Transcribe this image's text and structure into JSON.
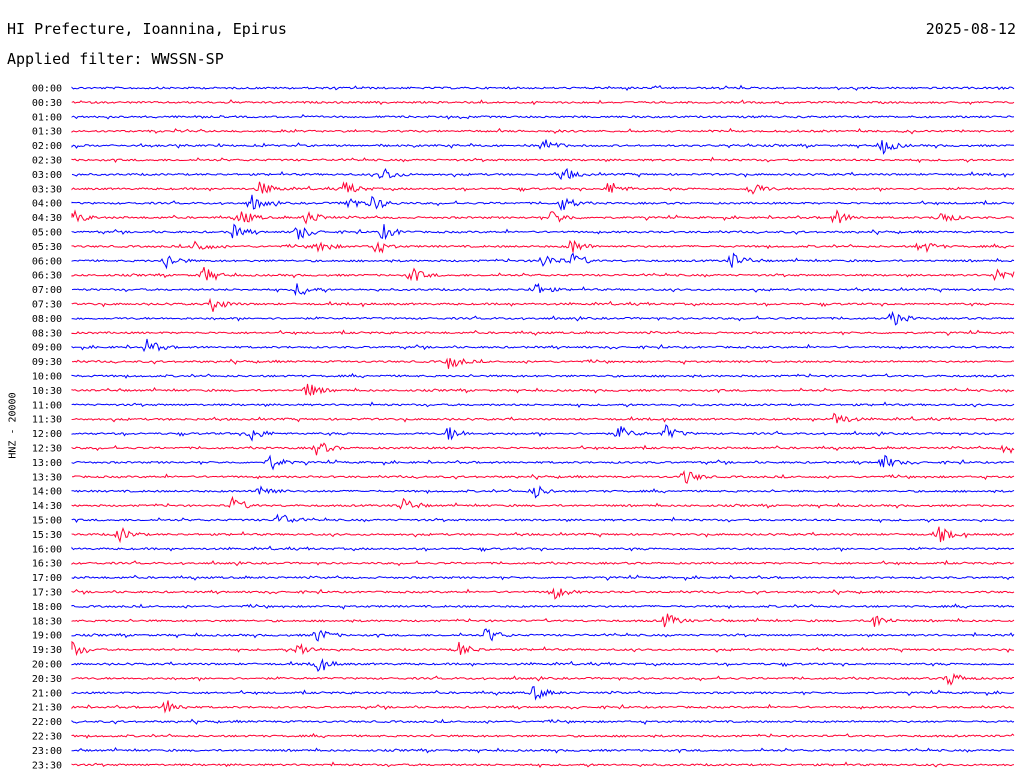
{
  "header": {
    "title": "HI Prefecture, Ioannina, Epirus",
    "date": "2025-08-12",
    "filter": "Applied filter: WWSSN-SP"
  },
  "chart_data": {
    "type": "line",
    "ylabel": "HNZ - 20000",
    "colors": [
      "#0000ff",
      "#ff0033"
    ],
    "traces": [
      {
        "label": "00:00",
        "events": []
      },
      {
        "label": "00:30",
        "events": []
      },
      {
        "label": "01:00",
        "events": []
      },
      {
        "label": "01:30",
        "events": []
      },
      {
        "label": "02:00",
        "events": [
          0.5,
          0.86
        ]
      },
      {
        "label": "02:30",
        "events": []
      },
      {
        "label": "03:00",
        "events": [
          0.33,
          0.52
        ]
      },
      {
        "label": "03:30",
        "events": [
          0.2,
          0.29,
          0.57,
          0.72
        ]
      },
      {
        "label": "04:00",
        "events": [
          0.19,
          0.29,
          0.32,
          0.52
        ]
      },
      {
        "label": "04:30",
        "events": [
          0.0,
          0.18,
          0.25,
          0.51,
          0.81,
          0.92
        ]
      },
      {
        "label": "05:00",
        "events": [
          0.17,
          0.24,
          0.33
        ]
      },
      {
        "label": "05:30",
        "events": [
          0.13,
          0.26,
          0.32,
          0.53,
          0.9
        ]
      },
      {
        "label": "06:00",
        "events": [
          0.1,
          0.5,
          0.53,
          0.7
        ]
      },
      {
        "label": "06:30",
        "events": [
          0.14,
          0.36,
          0.98
        ]
      },
      {
        "label": "07:00",
        "events": [
          0.24,
          0.49
        ]
      },
      {
        "label": "07:30",
        "events": [
          0.15
        ]
      },
      {
        "label": "08:00",
        "events": [
          0.87
        ]
      },
      {
        "label": "08:30",
        "events": []
      },
      {
        "label": "09:00",
        "events": [
          0.08
        ]
      },
      {
        "label": "09:30",
        "events": [
          0.4
        ]
      },
      {
        "label": "10:00",
        "events": []
      },
      {
        "label": "10:30",
        "events": [
          0.25
        ]
      },
      {
        "label": "11:00",
        "events": []
      },
      {
        "label": "11:30",
        "events": [
          0.81
        ]
      },
      {
        "label": "12:00",
        "events": [
          0.19,
          0.4,
          0.58,
          0.63
        ]
      },
      {
        "label": "12:30",
        "events": [
          0.26,
          0.99
        ]
      },
      {
        "label": "13:00",
        "events": [
          0.21,
          0.86
        ]
      },
      {
        "label": "13:30",
        "events": [
          0.65
        ]
      },
      {
        "label": "14:00",
        "events": [
          0.2,
          0.49
        ]
      },
      {
        "label": "14:30",
        "events": [
          0.17,
          0.35
        ]
      },
      {
        "label": "15:00",
        "events": [
          0.22
        ]
      },
      {
        "label": "15:30",
        "events": [
          0.05,
          0.92
        ]
      },
      {
        "label": "16:00",
        "events": []
      },
      {
        "label": "16:30",
        "events": []
      },
      {
        "label": "17:00",
        "events": []
      },
      {
        "label": "17:30",
        "events": [
          0.51
        ]
      },
      {
        "label": "18:00",
        "events": []
      },
      {
        "label": "18:30",
        "events": [
          0.63,
          0.85
        ]
      },
      {
        "label": "19:00",
        "events": [
          0.26,
          0.44,
          1.0
        ]
      },
      {
        "label": "19:30",
        "events": [
          0.0,
          0.24,
          0.41
        ]
      },
      {
        "label": "20:00",
        "events": [
          0.26
        ]
      },
      {
        "label": "20:30",
        "events": [
          0.93
        ]
      },
      {
        "label": "21:00",
        "events": [
          0.49
        ]
      },
      {
        "label": "21:30",
        "events": [
          0.1
        ]
      },
      {
        "label": "22:00",
        "events": []
      },
      {
        "label": "22:30",
        "events": []
      },
      {
        "label": "23:00",
        "events": []
      },
      {
        "label": "23:30",
        "events": []
      }
    ]
  }
}
